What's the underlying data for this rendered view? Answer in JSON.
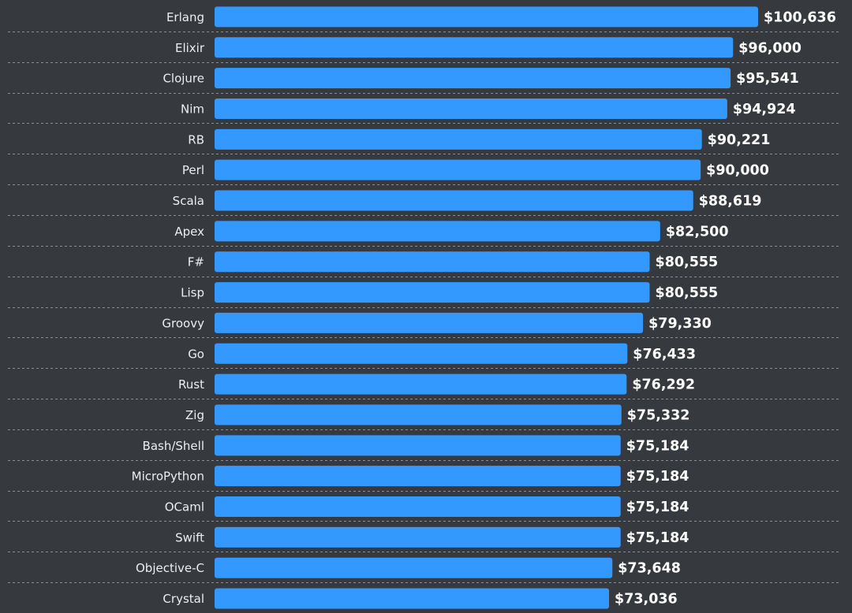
{
  "chart_data": {
    "type": "bar",
    "orientation": "horizontal",
    "categories": [
      "Erlang",
      "Elixir",
      "Clojure",
      "Nim",
      "RB",
      "Perl",
      "Scala",
      "Apex",
      "F#",
      "Lisp",
      "Groovy",
      "Go",
      "Rust",
      "Zig",
      "Bash/Shell",
      "MicroPython",
      "OCaml",
      "Swift",
      "Objective-C",
      "Crystal"
    ],
    "values": [
      100636,
      96000,
      95541,
      94924,
      90221,
      90000,
      88619,
      82500,
      80555,
      80555,
      79330,
      76433,
      76292,
      75332,
      75184,
      75184,
      75184,
      75184,
      73648,
      73036
    ],
    "value_labels": [
      "$100,636",
      "$96,000",
      "$95,541",
      "$94,924",
      "$90,221",
      "$90,000",
      "$88,619",
      "$82,500",
      "$80,555",
      "$80,555",
      "$79,330",
      "$76,433",
      "$76,292",
      "$75,332",
      "$75,184",
      "$75,184",
      "$75,184",
      "$75,184",
      "$73,648",
      "$73,036"
    ],
    "xlim": [
      0,
      100636
    ],
    "grid": "dashed row separators",
    "legend": "none"
  },
  "colors": {
    "background": "#36393d",
    "bar": "#3399ff",
    "category_text": "#eceef0",
    "value_text": "#ffffff",
    "grid": "#8a8e93"
  }
}
